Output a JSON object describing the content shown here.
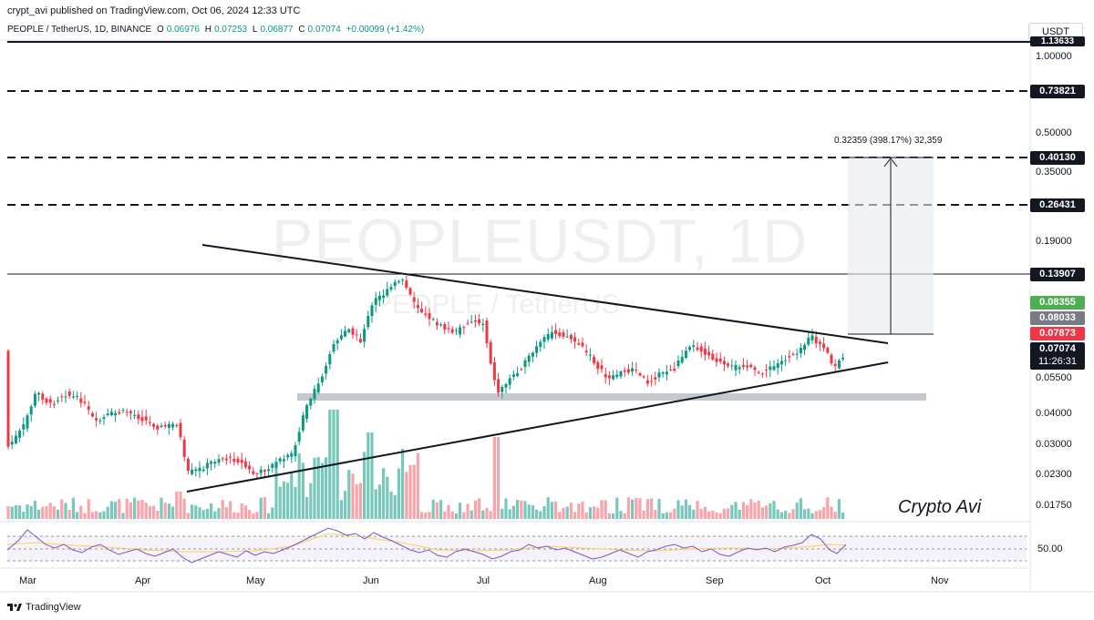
{
  "header": {
    "published": "crypt_avi published on TradingView.com, Oct 06, 2024 12:33 UTC",
    "symbol": "PEOPLE / TetherUS, 1D, BINANCE",
    "o_label": "O",
    "o_value": "0.06976",
    "h_label": "H",
    "h_value": "0.07253",
    "l_label": "L",
    "l_value": "0.06877",
    "c_label": "C",
    "c_value": "0.07074",
    "change": "+0.00099 (+1.42%)"
  },
  "currency_button": "USDT",
  "watermark": {
    "ticker": "PEOPLEUSDT, 1D",
    "pair": "PEOPLE / TetherUS"
  },
  "price_axis": {
    "ticks": [
      "1.00000",
      "0.50000",
      "0.35000",
      "0.19000",
      "0.05500",
      "0.04000",
      "0.03000",
      "0.02300",
      "0.01750"
    ],
    "rsi_tick": "50.00"
  },
  "price_labels": {
    "top_line": "1.13633",
    "l1": "0.73821",
    "l2": "0.40130",
    "l3": "0.26431",
    "l4": "0.13907",
    "green": "0.08355",
    "gray": "0.08033",
    "red": "0.07873",
    "last": "0.07074",
    "countdown": "11:26:31"
  },
  "measure_label": "0.32359 (398.17%) 32,359",
  "time_axis": [
    "Mar",
    "Apr",
    "May",
    "Jun",
    "Jul",
    "Aug",
    "Sep",
    "Oct",
    "Nov"
  ],
  "signature": "Crypto Avi",
  "brand": "TradingView",
  "colors": {
    "up": "#089981",
    "down": "#f23645",
    "rsi": "#7e57c2",
    "rsi_ma": "#f7d354",
    "band": "#b2b5be"
  }
}
